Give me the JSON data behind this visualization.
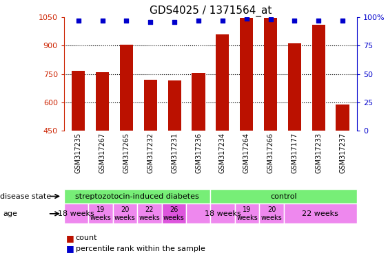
{
  "title": "GDS4025 / 1371564_at",
  "samples": [
    "GSM317235",
    "GSM317267",
    "GSM317265",
    "GSM317232",
    "GSM317231",
    "GSM317236",
    "GSM317234",
    "GSM317264",
    "GSM317266",
    "GSM317177",
    "GSM317233",
    "GSM317237"
  ],
  "counts": [
    765,
    760,
    905,
    720,
    715,
    755,
    960,
    1045,
    1045,
    910,
    1010,
    590
  ],
  "percentiles": [
    97,
    97,
    97,
    96,
    96,
    97,
    97,
    99,
    98,
    97,
    97,
    97
  ],
  "ylim": [
    450,
    1050
  ],
  "yticks": [
    450,
    600,
    750,
    900,
    1050
  ],
  "right_yticks": [
    0,
    25,
    50,
    75,
    100
  ],
  "bar_color": "#bb1100",
  "dot_color": "#0000cc",
  "left_axis_color": "#cc2200",
  "right_axis_color": "#0000cc",
  "bg_color": "#ffffff",
  "grid_color": "#000000",
  "disease_groups": [
    {
      "label": "streptozotocin-induced diabetes",
      "start": 0,
      "end": 6,
      "color": "#77ee77"
    },
    {
      "label": "control",
      "start": 6,
      "end": 12,
      "color": "#77ee77"
    }
  ],
  "age_defs": [
    {
      "label": "18 weeks",
      "start": 0,
      "end": 1,
      "color": "#ee88ee",
      "two_line": false
    },
    {
      "label": "19\nweeks",
      "start": 1,
      "end": 2,
      "color": "#ee88ee",
      "two_line": true
    },
    {
      "label": "20\nweeks",
      "start": 2,
      "end": 3,
      "color": "#ee88ee",
      "two_line": true
    },
    {
      "label": "22\nweeks",
      "start": 3,
      "end": 4,
      "color": "#ee88ee",
      "two_line": true
    },
    {
      "label": "26\nweeks",
      "start": 4,
      "end": 5,
      "color": "#dd55dd",
      "two_line": true
    },
    {
      "label": "",
      "start": 5,
      "end": 6,
      "color": "#ee88ee",
      "two_line": false
    },
    {
      "label": "18 weeks",
      "start": 6,
      "end": 7,
      "color": "#ee88ee",
      "two_line": false
    },
    {
      "label": "19\nweeks",
      "start": 7,
      "end": 8,
      "color": "#ee88ee",
      "two_line": true
    },
    {
      "label": "20\nweeks",
      "start": 8,
      "end": 9,
      "color": "#ee88ee",
      "two_line": true
    },
    {
      "label": "22 weeks",
      "start": 9,
      "end": 12,
      "color": "#ee88ee",
      "two_line": false
    }
  ],
  "fig_width": 5.63,
  "fig_height": 3.84,
  "dpi": 100
}
